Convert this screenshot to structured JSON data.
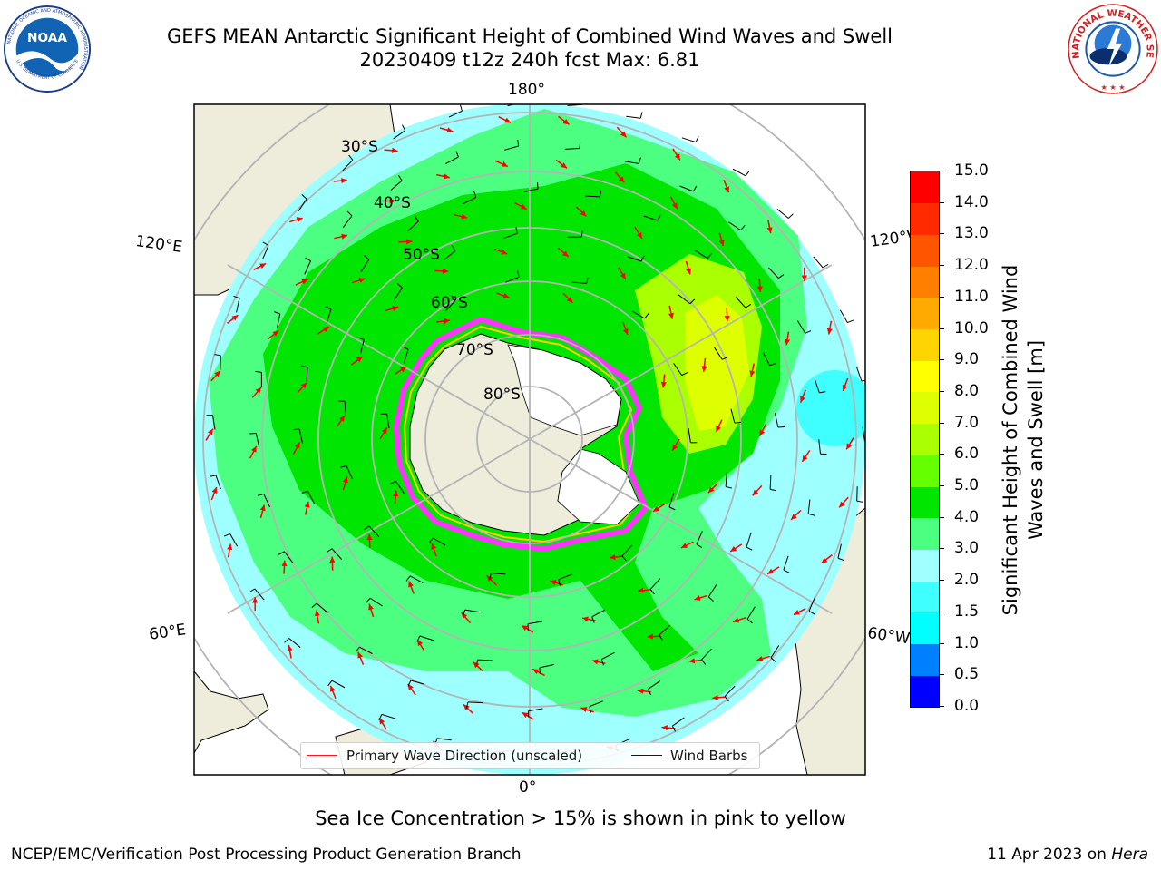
{
  "header": {
    "title_line1": "GEFS MEAN Antarctic Significant Height of Combined Wind Waves and Swell",
    "title_line2": "20230409 t12z 240h fcst   Max: 6.81",
    "noaa_logo_text": "NOAA",
    "noaa_ring_text": "NATIONAL OCEANIC AND ATMOSPHERIC ADMINISTRATION",
    "noaa_ring_bottom": "U.S. DEPARTMENT OF COMMERCE",
    "nws_ring_text": "NATIONAL WEATHER SERVICE"
  },
  "map": {
    "projection": "south-polar-stereographic",
    "longitude_labels": {
      "top": "180°",
      "bottom": "0°",
      "upper_left": "120°E",
      "upper_right": "120°W",
      "lower_left": "60°E",
      "lower_right": "60°W"
    },
    "latitude_labels": [
      "30°S",
      "40°S",
      "50°S",
      "60°S",
      "70°S",
      "80°S"
    ],
    "colors": {
      "land": "#eeecdb",
      "ice_sheet": "#ffffff",
      "ocean_low": "#9effff",
      "sea_ice_edge": "#ff33ff",
      "graticule": "#b4b4b4"
    }
  },
  "legend": {
    "wave_label": "Primary Wave Direction (unscaled)",
    "wave_color": "#ff0000",
    "barb_label": "Wind Barbs",
    "barb_color": "#000000"
  },
  "colorbar": {
    "label": "Significant Height of Combined Wind Waves and Swell [m]",
    "ticks": [
      "0.0",
      "0.5",
      "1.0",
      "1.5",
      "2.0",
      "3.0",
      "4.0",
      "5.0",
      "6.0",
      "7.0",
      "8.0",
      "9.0",
      "10.0",
      "11.0",
      "12.0",
      "13.0",
      "14.0",
      "15.0"
    ],
    "colors": [
      "#0000ff",
      "#0080ff",
      "#00ffff",
      "#40ffff",
      "#a0ffff",
      "#4dff80",
      "#00e600",
      "#66ff00",
      "#aaff00",
      "#ddff00",
      "#ffff00",
      "#ffd500",
      "#ffaa00",
      "#ff8000",
      "#ff5500",
      "#ff2a00",
      "#ff0000"
    ]
  },
  "footer": {
    "note": "Sea Ice Concentration > 15% is shown in pink to yellow",
    "left": "NCEP/EMC/Verification Post Processing Product Generation Branch",
    "right_prefix": "11 Apr 2023 on ",
    "right_host": "Hera"
  }
}
